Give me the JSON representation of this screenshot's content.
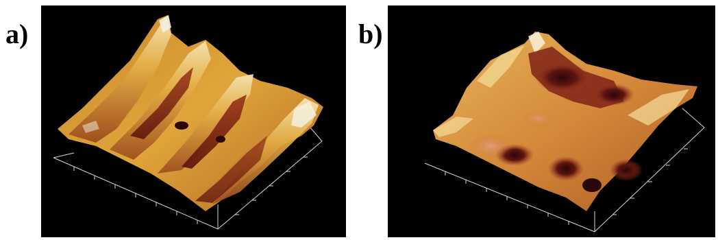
{
  "panels": [
    {
      "label": "a)"
    },
    {
      "label": "b)"
    }
  ],
  "colors": {
    "background": "#000000",
    "surface_highlight": "#f4f0df",
    "surface_gold": "#e0a53a",
    "surface_orange": "#c8742a",
    "surface_maroon": "#7a1c14",
    "surface_dark": "#2a0806",
    "surface_pink": "#d8847a",
    "axis_line": "#d9d9d9"
  }
}
